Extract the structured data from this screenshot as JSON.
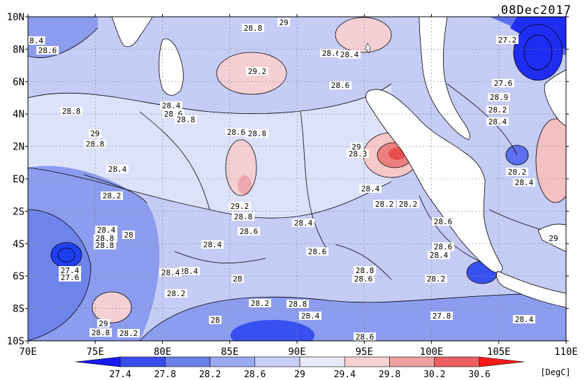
{
  "title": "08Dec2017",
  "units": "[DegC]",
  "axes": {
    "lat_ticks": [
      "10N",
      "8N",
      "6N",
      "4N",
      "2N",
      "EQ",
      "2S",
      "4S",
      "6S",
      "8S",
      "10S"
    ],
    "lon_ticks": [
      "70E",
      "75E",
      "80E",
      "85E",
      "90E",
      "95E",
      "100E",
      "105E",
      "110E"
    ]
  },
  "colorbar": {
    "labels": [
      "27.4",
      "27.8",
      "28.2",
      "28.6",
      "29",
      "29.4",
      "29.8",
      "30.2",
      "30.6"
    ],
    "colors": [
      "#1a1aff",
      "#3a4cf0",
      "#6b80e8",
      "#9aaaf0",
      "#c8d0f8",
      "#e8eaff",
      "#f8d0d0",
      "#f0a0a0",
      "#ec6060",
      "#ff1a1a"
    ]
  },
  "colors": {
    "land": "#ffffff",
    "contour": "#000000",
    "base_sst": "#c5ccf6"
  },
  "contour_labels": [
    "28.8",
    "29",
    "8.4",
    "28.6",
    "28.6",
    "28.4",
    "29.2",
    "28.6",
    "28.8",
    "28.4",
    "28.6",
    "28.8",
    "29",
    "28.8",
    "28.8",
    "28.6",
    "29",
    "28.3",
    "28.4",
    "28.2",
    "28.4",
    "28.2",
    "29.2",
    "28.8",
    "28.6",
    "28.4",
    "28.4",
    "28.6",
    "28.4",
    "28.8",
    "28.8",
    "28.6",
    "28",
    "28.4",
    "27.4",
    "27.6",
    "28.4",
    "28",
    "28.2",
    "28.6",
    "28.2",
    "28.8",
    "28.4",
    "28.8",
    "28.6",
    "28.2",
    "28.6",
    "28.4",
    "28.2",
    "29",
    "28.8",
    "28.2",
    "28",
    "27.8",
    "28.6",
    "27.2",
    "27.6",
    "28.9",
    "28.2",
    "28.4",
    "28.2",
    "28.4",
    "29",
    "28.4"
  ]
}
